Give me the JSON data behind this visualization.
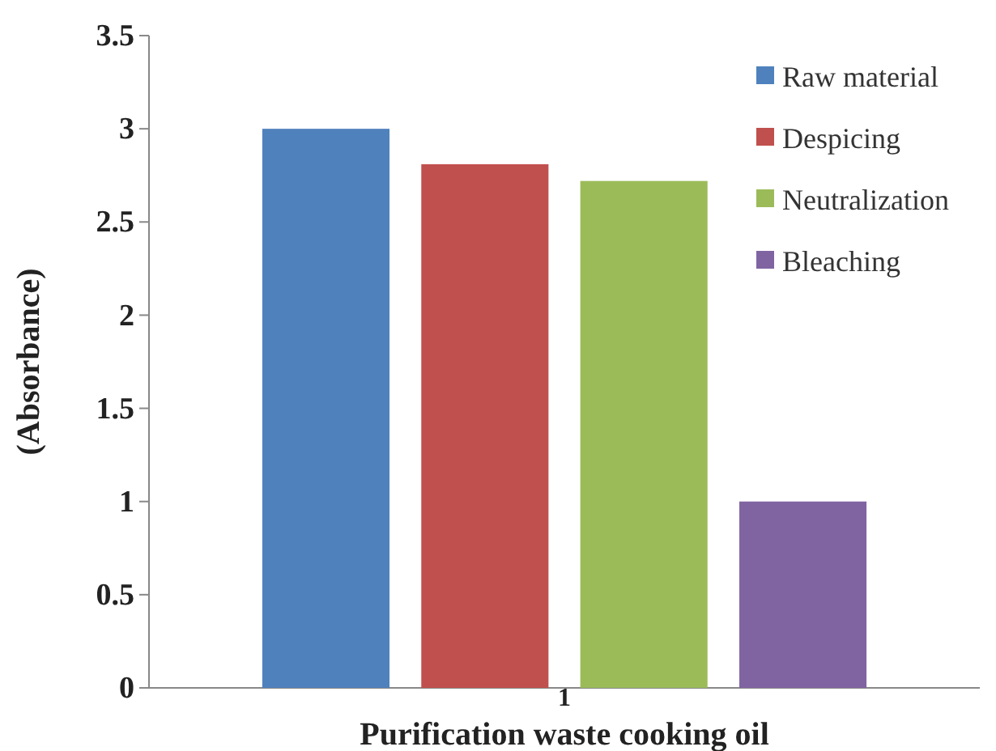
{
  "chart_data": {
    "type": "bar",
    "categories": [
      "1"
    ],
    "series": [
      {
        "name": "Raw material",
        "color": "#4f81bd",
        "values": [
          3.0
        ]
      },
      {
        "name": "Despicing",
        "color": "#c0504d",
        "values": [
          2.81
        ]
      },
      {
        "name": "Neutralization",
        "color": "#9bbb59",
        "values": [
          2.72
        ]
      },
      {
        "name": "Bleaching",
        "color": "#8064a2",
        "values": [
          1.0
        ]
      }
    ],
    "xlabel": "Purification waste cooking oil",
    "ylabel": "(Absorbance)",
    "ylim": [
      0,
      3.5
    ],
    "yticks": [
      0,
      0.5,
      1,
      1.5,
      2,
      2.5,
      3,
      3.5
    ],
    "legend": "top right",
    "grid": false
  }
}
